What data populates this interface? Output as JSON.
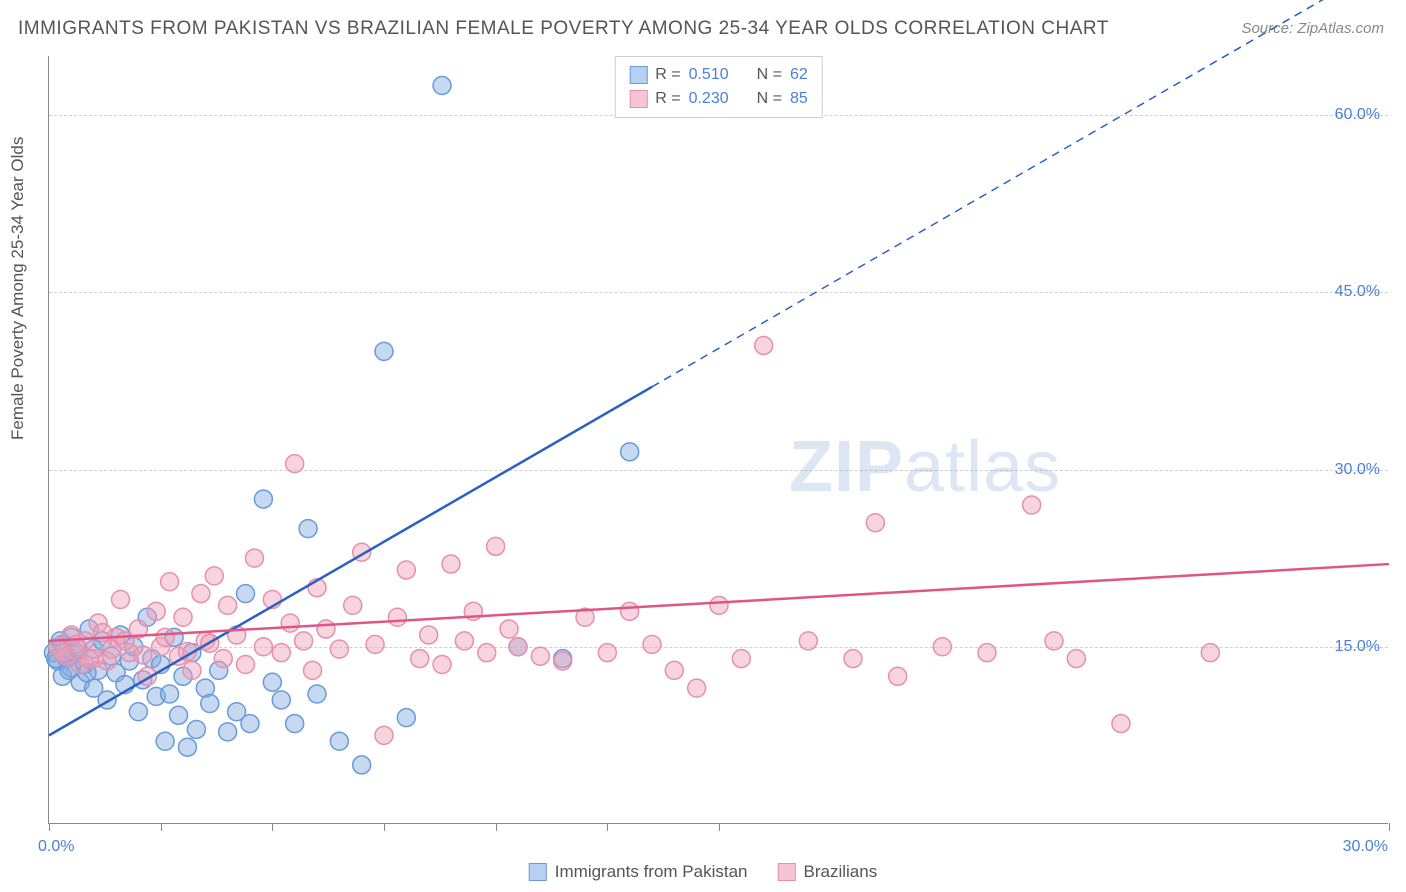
{
  "title": "IMMIGRANTS FROM PAKISTAN VS BRAZILIAN FEMALE POVERTY AMONG 25-34 YEAR OLDS CORRELATION CHART",
  "source": "Source: ZipAtlas.com",
  "ylabel": "Female Poverty Among 25-34 Year Olds",
  "watermark_bold": "ZIP",
  "watermark_rest": "atlas",
  "chart": {
    "type": "scatter-correlation",
    "xlim": [
      0,
      30
    ],
    "ylim": [
      0,
      65
    ],
    "x_ticks": [
      0,
      2.5,
      5,
      7.5,
      10,
      12.5,
      15,
      30
    ],
    "y_gridlines": [
      15,
      30,
      45,
      60
    ],
    "y_gridline_labels": [
      "15.0%",
      "30.0%",
      "45.0%",
      "60.0%"
    ],
    "x_min_label": "0.0%",
    "x_max_label": "30.0%",
    "background_color": "#ffffff",
    "grid_color": "#d0d0d0",
    "axis_color": "#888888",
    "axis_value_color": "#4a7fd8",
    "title_color": "#555555",
    "title_fontsize": 19,
    "label_fontsize": 17,
    "axis_fontsize": 16,
    "point_radius": 9,
    "series": [
      {
        "name": "Immigrants from Pakistan",
        "color_fill": "rgba(130,170,225,0.45)",
        "color_stroke": "#6a9bd8",
        "swatch_fill": "#b8d0ef",
        "swatch_stroke": "#6a9bd8",
        "R": "0.510",
        "N": "62",
        "trend": {
          "color": "#2c5fc4",
          "width": 2.5,
          "x1": 0,
          "y1": 7.5,
          "x2": 13.5,
          "y2": 37,
          "dash_extend_to_x": 30,
          "dash_extend_to_y": 73
        },
        "points": [
          [
            0.1,
            14.5
          ],
          [
            0.2,
            13.8
          ],
          [
            0.3,
            15.2
          ],
          [
            0.3,
            12.5
          ],
          [
            0.4,
            14.0
          ],
          [
            0.5,
            13.2
          ],
          [
            0.5,
            15.8
          ],
          [
            0.6,
            14.5
          ],
          [
            0.7,
            12.0
          ],
          [
            0.8,
            13.5
          ],
          [
            0.9,
            16.5
          ],
          [
            1.0,
            14.8
          ],
          [
            1.0,
            11.5
          ],
          [
            1.1,
            13.0
          ],
          [
            1.2,
            15.5
          ],
          [
            1.3,
            10.5
          ],
          [
            1.4,
            14.2
          ],
          [
            1.5,
            12.8
          ],
          [
            1.6,
            16.0
          ],
          [
            1.7,
            11.8
          ],
          [
            1.8,
            13.8
          ],
          [
            1.9,
            15.0
          ],
          [
            2.0,
            9.5
          ],
          [
            2.1,
            12.2
          ],
          [
            2.2,
            17.5
          ],
          [
            2.3,
            14.0
          ],
          [
            2.4,
            10.8
          ],
          [
            2.5,
            13.5
          ],
          [
            2.6,
            7.0
          ],
          [
            2.7,
            11.0
          ],
          [
            2.8,
            15.8
          ],
          [
            2.9,
            9.2
          ],
          [
            3.0,
            12.5
          ],
          [
            3.1,
            6.5
          ],
          [
            3.2,
            14.5
          ],
          [
            3.3,
            8.0
          ],
          [
            3.5,
            11.5
          ],
          [
            3.6,
            10.2
          ],
          [
            3.8,
            13.0
          ],
          [
            4.0,
            7.8
          ],
          [
            4.2,
            9.5
          ],
          [
            4.4,
            19.5
          ],
          [
            4.5,
            8.5
          ],
          [
            4.8,
            27.5
          ],
          [
            5.0,
            12.0
          ],
          [
            5.2,
            10.5
          ],
          [
            5.5,
            8.5
          ],
          [
            5.8,
            25.0
          ],
          [
            6.0,
            11.0
          ],
          [
            6.5,
            7.0
          ],
          [
            7.0,
            5.0
          ],
          [
            7.5,
            40.0
          ],
          [
            8.0,
            9.0
          ],
          [
            8.8,
            62.5
          ],
          [
            10.5,
            15.0
          ],
          [
            11.5,
            14.0
          ],
          [
            13.0,
            31.5
          ],
          [
            0.15,
            14.0
          ],
          [
            0.25,
            15.5
          ],
          [
            0.45,
            13.0
          ],
          [
            0.65,
            14.8
          ],
          [
            0.85,
            12.8
          ]
        ]
      },
      {
        "name": "Brazilians",
        "color_fill": "rgba(240,160,185,0.45)",
        "color_stroke": "#e590ad",
        "swatch_fill": "#f5c5d5",
        "swatch_stroke": "#e590ad",
        "R": "0.230",
        "N": "85",
        "trend": {
          "color": "#e05588",
          "width": 2.5,
          "x1": 0,
          "y1": 15.5,
          "x2": 30,
          "y2": 22
        },
        "points": [
          [
            0.2,
            15.0
          ],
          [
            0.4,
            14.2
          ],
          [
            0.5,
            16.0
          ],
          [
            0.7,
            13.5
          ],
          [
            0.8,
            15.5
          ],
          [
            1.0,
            14.0
          ],
          [
            1.1,
            17.0
          ],
          [
            1.3,
            13.8
          ],
          [
            1.5,
            15.8
          ],
          [
            1.6,
            19.0
          ],
          [
            1.8,
            14.5
          ],
          [
            2.0,
            16.5
          ],
          [
            2.2,
            12.5
          ],
          [
            2.4,
            18.0
          ],
          [
            2.5,
            15.0
          ],
          [
            2.7,
            20.5
          ],
          [
            2.9,
            14.2
          ],
          [
            3.0,
            17.5
          ],
          [
            3.2,
            13.0
          ],
          [
            3.4,
            19.5
          ],
          [
            3.5,
            15.5
          ],
          [
            3.7,
            21.0
          ],
          [
            3.9,
            14.0
          ],
          [
            4.0,
            18.5
          ],
          [
            4.2,
            16.0
          ],
          [
            4.4,
            13.5
          ],
          [
            4.6,
            22.5
          ],
          [
            4.8,
            15.0
          ],
          [
            5.0,
            19.0
          ],
          [
            5.2,
            14.5
          ],
          [
            5.4,
            17.0
          ],
          [
            5.5,
            30.5
          ],
          [
            5.7,
            15.5
          ],
          [
            5.9,
            13.0
          ],
          [
            6.0,
            20.0
          ],
          [
            6.2,
            16.5
          ],
          [
            6.5,
            14.8
          ],
          [
            6.8,
            18.5
          ],
          [
            7.0,
            23.0
          ],
          [
            7.3,
            15.2
          ],
          [
            7.5,
            7.5
          ],
          [
            7.8,
            17.5
          ],
          [
            8.0,
            21.5
          ],
          [
            8.3,
            14.0
          ],
          [
            8.5,
            16.0
          ],
          [
            8.8,
            13.5
          ],
          [
            9.0,
            22.0
          ],
          [
            9.3,
            15.5
          ],
          [
            9.5,
            18.0
          ],
          [
            9.8,
            14.5
          ],
          [
            10.0,
            23.5
          ],
          [
            10.3,
            16.5
          ],
          [
            10.5,
            15.0
          ],
          [
            11.0,
            14.2
          ],
          [
            11.5,
            13.8
          ],
          [
            12.0,
            17.5
          ],
          [
            12.5,
            14.5
          ],
          [
            13.0,
            18.0
          ],
          [
            13.5,
            15.2
          ],
          [
            14.0,
            13.0
          ],
          [
            14.5,
            11.5
          ],
          [
            15.0,
            18.5
          ],
          [
            15.5,
            14.0
          ],
          [
            16.0,
            40.5
          ],
          [
            17.0,
            15.5
          ],
          [
            18.0,
            14.0
          ],
          [
            18.5,
            25.5
          ],
          [
            19.0,
            12.5
          ],
          [
            20.0,
            15.0
          ],
          [
            21.0,
            14.5
          ],
          [
            22.0,
            27.0
          ],
          [
            22.5,
            15.5
          ],
          [
            23.0,
            14.0
          ],
          [
            24.0,
            8.5
          ],
          [
            26.0,
            14.5
          ],
          [
            0.3,
            14.5
          ],
          [
            0.6,
            15.2
          ],
          [
            0.9,
            14.0
          ],
          [
            1.2,
            16.2
          ],
          [
            1.4,
            14.8
          ],
          [
            1.7,
            15.5
          ],
          [
            2.1,
            14.3
          ],
          [
            2.6,
            15.8
          ],
          [
            3.1,
            14.6
          ],
          [
            3.6,
            15.3
          ]
        ]
      }
    ]
  },
  "legend_bottom": [
    {
      "label": "Immigrants from Pakistan"
    },
    {
      "label": "Brazilians"
    }
  ]
}
